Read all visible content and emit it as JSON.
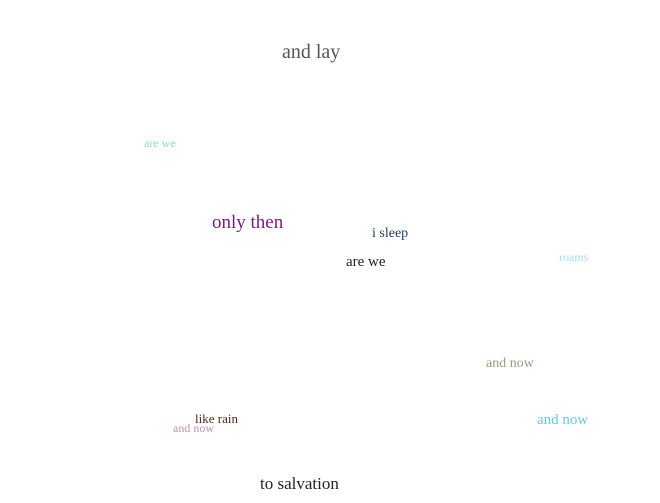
{
  "words": [
    {
      "text": "and lay",
      "color": "#555555"
    },
    {
      "text": "are we",
      "color": "#7fe3b8"
    },
    {
      "text": "only then",
      "color": "#7b1a84"
    },
    {
      "text": "i sleep",
      "color": "#1e3f66"
    },
    {
      "text": "are we",
      "color": "#222222"
    },
    {
      "text": "roams",
      "color": "#a6e1e1"
    },
    {
      "text": "and now",
      "color": "#8da083"
    },
    {
      "text": "and now",
      "color": "#6ec4e2"
    },
    {
      "text": "like rain",
      "color": "#4a2a1a"
    },
    {
      "text": "and now",
      "color": "#c58fa6"
    },
    {
      "text": "to salvation",
      "color": "#222222"
    }
  ]
}
